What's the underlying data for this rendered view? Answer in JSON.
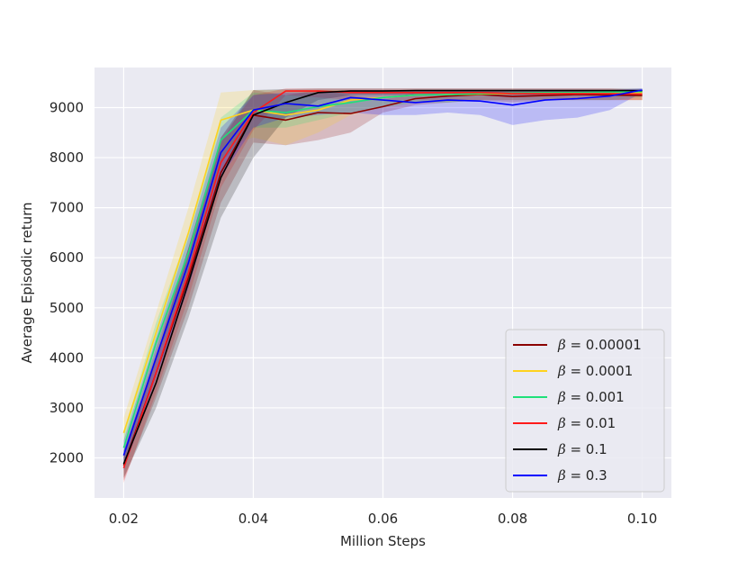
{
  "chart_data": {
    "type": "line",
    "title": "",
    "xlabel": "Million Steps",
    "ylabel": "Average Episodic return",
    "xlim": [
      0.0155,
      0.1045
    ],
    "ylim": [
      1200,
      9800
    ],
    "xticks": [
      0.02,
      0.04,
      0.06,
      0.08,
      0.1
    ],
    "xtick_labels": [
      "0.02",
      "0.04",
      "0.06",
      "0.08",
      "0.10"
    ],
    "yticks": [
      2000,
      3000,
      4000,
      5000,
      6000,
      7000,
      8000,
      9000
    ],
    "ytick_labels": [
      "2000",
      "3000",
      "4000",
      "5000",
      "6000",
      "7000",
      "8000",
      "9000"
    ],
    "grid": true,
    "legend_position": "bottom-right",
    "legend_prefix": "β = ",
    "colors": {
      "background": "#eaeaf2",
      "grid": "#ffffff",
      "text": "#262626"
    },
    "series": [
      {
        "name": "0.00001",
        "color": "#8b0000",
        "x": [
          0.02,
          0.025,
          0.03,
          0.035,
          0.04,
          0.045,
          0.05,
          0.055,
          0.06,
          0.065,
          0.07,
          0.075,
          0.08,
          0.085,
          0.09,
          0.095,
          0.1
        ],
        "y": [
          1850,
          3700,
          5600,
          7700,
          8850,
          8750,
          8900,
          8880,
          9020,
          9180,
          9230,
          9260,
          9220,
          9240,
          9260,
          9250,
          9240
        ],
        "lower": [
          1550,
          3200,
          5000,
          7100,
          8300,
          8250,
          8350,
          8500,
          8900,
          9050,
          9100,
          9150,
          9100,
          9150,
          9150,
          9150,
          9150
        ],
        "upper": [
          2150,
          4200,
          6200,
          8300,
          9350,
          9250,
          9350,
          9250,
          9150,
          9300,
          9330,
          9350,
          9330,
          9330,
          9350,
          9350,
          9330
        ]
      },
      {
        "name": "0.0001",
        "color": "#ffd21f",
        "x": [
          0.02,
          0.025,
          0.03,
          0.035,
          0.04,
          0.045,
          0.05,
          0.055,
          0.06,
          0.065,
          0.07,
          0.075,
          0.08,
          0.085,
          0.09,
          0.095,
          0.1
        ],
        "y": [
          2500,
          4500,
          6500,
          8750,
          8950,
          8850,
          8950,
          9150,
          9200,
          9250,
          9260,
          9270,
          9280,
          9290,
          9300,
          9300,
          9300
        ],
        "lower": [
          2200,
          4100,
          6000,
          8200,
          8400,
          8250,
          8500,
          8850,
          9000,
          9100,
          9100,
          9150,
          9150,
          9150,
          9150,
          9150,
          9150
        ],
        "upper": [
          2800,
          4900,
          7000,
          9300,
          9350,
          9350,
          9350,
          9350,
          9350,
          9350,
          9350,
          9350,
          9350,
          9350,
          9350,
          9350,
          9350
        ]
      },
      {
        "name": "0.001",
        "color": "#1fe07a",
        "x": [
          0.02,
          0.025,
          0.03,
          0.035,
          0.04,
          0.045,
          0.05,
          0.055,
          0.06,
          0.065,
          0.07,
          0.075,
          0.08,
          0.085,
          0.09,
          0.095,
          0.1
        ],
        "y": [
          2200,
          4300,
          6100,
          8350,
          8950,
          8900,
          9020,
          9100,
          9200,
          9250,
          9260,
          9280,
          9290,
          9300,
          9300,
          9310,
          9320
        ],
        "lower": [
          1900,
          3900,
          5700,
          7900,
          8600,
          8600,
          8750,
          8900,
          9000,
          9100,
          9100,
          9150,
          9150,
          9150,
          9150,
          9150,
          9200
        ],
        "upper": [
          2500,
          4700,
          6500,
          8800,
          9300,
          9250,
          9300,
          9300,
          9350,
          9350,
          9350,
          9350,
          9350,
          9350,
          9350,
          9350,
          9350
        ]
      },
      {
        "name": "0.01",
        "color": "#ff1a1a",
        "x": [
          0.02,
          0.025,
          0.03,
          0.035,
          0.04,
          0.045,
          0.05,
          0.055,
          0.06,
          0.065,
          0.07,
          0.075,
          0.08,
          0.085,
          0.09,
          0.095,
          0.1
        ],
        "y": [
          1800,
          3700,
          5700,
          7900,
          8900,
          9330,
          9330,
          9300,
          9300,
          9300,
          9300,
          9300,
          9280,
          9280,
          9280,
          9280,
          9270
        ],
        "lower": [
          1500,
          3300,
          5200,
          7400,
          8550,
          9250,
          9200,
          9150,
          9150,
          9150,
          9150,
          9150,
          9150,
          9150,
          9150,
          9150,
          9150
        ],
        "upper": [
          2100,
          4100,
          6200,
          8400,
          9250,
          9380,
          9380,
          9380,
          9380,
          9380,
          9380,
          9380,
          9380,
          9380,
          9380,
          9380,
          9350
        ]
      },
      {
        "name": "0.1",
        "color": "#000000",
        "x": [
          0.02,
          0.025,
          0.03,
          0.035,
          0.04,
          0.045,
          0.05,
          0.055,
          0.06,
          0.065,
          0.07,
          0.075,
          0.08,
          0.085,
          0.09,
          0.095,
          0.1
        ],
        "y": [
          1880,
          3500,
          5500,
          7600,
          8850,
          9100,
          9300,
          9330,
          9330,
          9340,
          9340,
          9340,
          9340,
          9340,
          9340,
          9340,
          9340
        ],
        "lower": [
          1600,
          3000,
          4800,
          6800,
          8000,
          8800,
          9150,
          9250,
          9250,
          9250,
          9250,
          9250,
          9250,
          9250,
          9250,
          9250,
          9250
        ],
        "upper": [
          2150,
          4000,
          6200,
          8400,
          9350,
          9370,
          9380,
          9380,
          9380,
          9380,
          9380,
          9380,
          9380,
          9380,
          9380,
          9380,
          9380
        ]
      },
      {
        "name": "0.3",
        "color": "#0000ff",
        "x": [
          0.02,
          0.025,
          0.03,
          0.035,
          0.04,
          0.045,
          0.05,
          0.055,
          0.06,
          0.065,
          0.07,
          0.075,
          0.08,
          0.085,
          0.09,
          0.095,
          0.1
        ],
        "y": [
          2050,
          4000,
          5900,
          8100,
          8950,
          9080,
          9030,
          9200,
          9150,
          9100,
          9150,
          9130,
          9050,
          9150,
          9180,
          9230,
          9350
        ],
        "lower": [
          1750,
          3600,
          5400,
          7600,
          8600,
          8800,
          8850,
          8900,
          8850,
          8850,
          8900,
          8850,
          8650,
          8750,
          8800,
          8950,
          9300
        ],
        "upper": [
          2350,
          4400,
          6400,
          8600,
          9250,
          9300,
          9300,
          9350,
          9350,
          9350,
          9350,
          9350,
          9350,
          9350,
          9350,
          9350,
          9380
        ]
      }
    ]
  }
}
